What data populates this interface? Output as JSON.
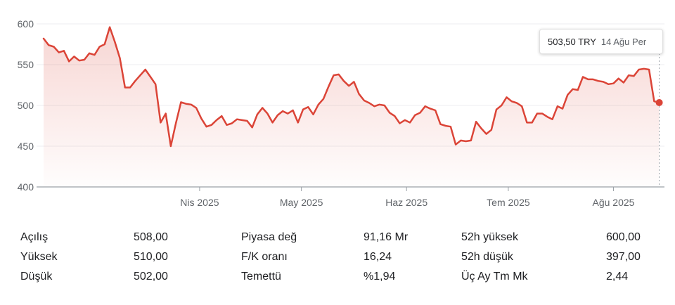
{
  "chart_data": {
    "type": "area",
    "y_ticks": [
      "600",
      "550",
      "500",
      "450",
      "400"
    ],
    "ylim": [
      400,
      600
    ],
    "x_ticks": [
      {
        "label": "Nis 2025",
        "day": 46
      },
      {
        "label": "May 2025",
        "day": 76
      },
      {
        "label": "Haz 2025",
        "day": 107
      },
      {
        "label": "Tem 2025",
        "day": 137
      },
      {
        "label": "Ağu 2025",
        "day": 168
      }
    ],
    "x_range_days": [
      0,
      182
    ],
    "series": [
      {
        "color": "#db4437",
        "points": [
          [
            0,
            582
          ],
          [
            1.5,
            574
          ],
          [
            3,
            572
          ],
          [
            4.5,
            565
          ],
          [
            6,
            567
          ],
          [
            7.5,
            554
          ],
          [
            9,
            560
          ],
          [
            10.5,
            555
          ],
          [
            12,
            556
          ],
          [
            13.5,
            564
          ],
          [
            15,
            562
          ],
          [
            16.5,
            572
          ],
          [
            18,
            575
          ],
          [
            19.5,
            596
          ],
          [
            21,
            578
          ],
          [
            22.5,
            558
          ],
          [
            24,
            522
          ],
          [
            25.5,
            522
          ],
          [
            27,
            530
          ],
          [
            28.5,
            537
          ],
          [
            30,
            544
          ],
          [
            31.5,
            535
          ],
          [
            33,
            526
          ],
          [
            34.5,
            479
          ],
          [
            36,
            490
          ],
          [
            37.5,
            450
          ],
          [
            39,
            478
          ],
          [
            40.5,
            504
          ],
          [
            42,
            502
          ],
          [
            43.5,
            501
          ],
          [
            45,
            497
          ],
          [
            46.5,
            484
          ],
          [
            48,
            474
          ],
          [
            49.5,
            476
          ],
          [
            51,
            482
          ],
          [
            52.5,
            487
          ],
          [
            54,
            476
          ],
          [
            55.5,
            478
          ],
          [
            57,
            483
          ],
          [
            58.5,
            482
          ],
          [
            60,
            481
          ],
          [
            61.5,
            473
          ],
          [
            63,
            489
          ],
          [
            64.5,
            497
          ],
          [
            66,
            490
          ],
          [
            67.5,
            479
          ],
          [
            69,
            488
          ],
          [
            70.5,
            493
          ],
          [
            72,
            490
          ],
          [
            73.5,
            494
          ],
          [
            75,
            479
          ],
          [
            76.5,
            495
          ],
          [
            78,
            498
          ],
          [
            79.5,
            489
          ],
          [
            81,
            501
          ],
          [
            82.5,
            508
          ],
          [
            84,
            523
          ],
          [
            85.5,
            537
          ],
          [
            87,
            538
          ],
          [
            88.5,
            530
          ],
          [
            90,
            524
          ],
          [
            91.5,
            529
          ],
          [
            93,
            514
          ],
          [
            94.5,
            506
          ],
          [
            96,
            503
          ],
          [
            97.5,
            499
          ],
          [
            99,
            501
          ],
          [
            100.5,
            500
          ],
          [
            102,
            491
          ],
          [
            103.5,
            487
          ],
          [
            105,
            478
          ],
          [
            106.5,
            482
          ],
          [
            108,
            479
          ],
          [
            109.5,
            488
          ],
          [
            111,
            491
          ],
          [
            112.5,
            499
          ],
          [
            114,
            496
          ],
          [
            115.5,
            494
          ],
          [
            117,
            477
          ],
          [
            118.5,
            475
          ],
          [
            120,
            474
          ],
          [
            121.5,
            452
          ],
          [
            123,
            457
          ],
          [
            124.5,
            456
          ],
          [
            126,
            457
          ],
          [
            127.5,
            480
          ],
          [
            129,
            472
          ],
          [
            130.5,
            465
          ],
          [
            132,
            470
          ],
          [
            133.5,
            495
          ],
          [
            135,
            500
          ],
          [
            136.5,
            510
          ],
          [
            138,
            505
          ],
          [
            139.5,
            503
          ],
          [
            141,
            499
          ],
          [
            142.5,
            479
          ],
          [
            144,
            479
          ],
          [
            145.5,
            490
          ],
          [
            147,
            490
          ],
          [
            148.5,
            486
          ],
          [
            150,
            483
          ],
          [
            151.5,
            499
          ],
          [
            153,
            496
          ],
          [
            154.5,
            513
          ],
          [
            156,
            520
          ],
          [
            157.5,
            519
          ],
          [
            159,
            535
          ],
          [
            160.5,
            532
          ],
          [
            162,
            532
          ],
          [
            163.5,
            530
          ],
          [
            165,
            529
          ],
          [
            166.5,
            526
          ],
          [
            168,
            527
          ],
          [
            169.5,
            533
          ],
          [
            171,
            528
          ],
          [
            172.5,
            537
          ],
          [
            174,
            536
          ],
          [
            175.5,
            544
          ],
          [
            177,
            545
          ],
          [
            178.5,
            544
          ],
          [
            180,
            505
          ],
          [
            181.5,
            503.5
          ]
        ]
      }
    ],
    "grid": true
  },
  "tooltip": {
    "price": "503,50 TRY",
    "date": "14 Ağu Per"
  },
  "stats": [
    [
      {
        "label": "Açılış",
        "value": "508,00"
      },
      {
        "label": "Piyasa değ",
        "value": "91,16 Mr"
      },
      {
        "label": "52h yüksek",
        "value": "600,00"
      }
    ],
    [
      {
        "label": "Yüksek",
        "value": "510,00"
      },
      {
        "label": "F/K oranı",
        "value": "16,24"
      },
      {
        "label": "52h düşük",
        "value": "397,00"
      }
    ],
    [
      {
        "label": "Düşük",
        "value": "502,00"
      },
      {
        "label": "Temettü",
        "value": "%1,94"
      },
      {
        "label": "Üç Ay Tm Mk",
        "value": "2,44"
      }
    ]
  ]
}
